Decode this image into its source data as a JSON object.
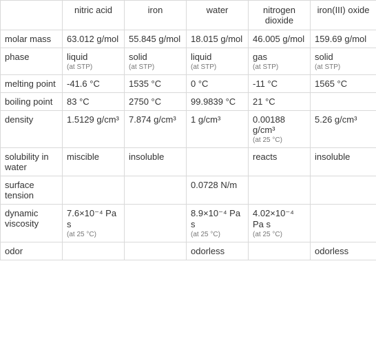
{
  "colors": {
    "border": "#d9d9d9",
    "text": "#333333",
    "sub": "#777777",
    "background": "#ffffff"
  },
  "font_sizes": {
    "main": 13,
    "sub": 10,
    "header": 13
  },
  "columns": [
    {
      "label": ""
    },
    {
      "label": "nitric acid"
    },
    {
      "label": "iron"
    },
    {
      "label": "water"
    },
    {
      "label": "nitrogen dioxide"
    },
    {
      "label": "iron(III) oxide"
    }
  ],
  "rows": [
    {
      "label": "molar mass",
      "cells": [
        {
          "value": "63.012 g/mol"
        },
        {
          "value": "55.845 g/mol"
        },
        {
          "value": "18.015 g/mol"
        },
        {
          "value": "46.005 g/mol"
        },
        {
          "value": "159.69 g/mol"
        }
      ]
    },
    {
      "label": "phase",
      "cells": [
        {
          "value": "liquid",
          "sub": "(at STP)"
        },
        {
          "value": "solid",
          "sub": "(at STP)"
        },
        {
          "value": "liquid",
          "sub": "(at STP)"
        },
        {
          "value": "gas",
          "sub": "(at STP)"
        },
        {
          "value": "solid",
          "sub": "(at STP)"
        }
      ]
    },
    {
      "label": "melting point",
      "cells": [
        {
          "value": "-41.6 °C"
        },
        {
          "value": "1535 °C"
        },
        {
          "value": "0 °C"
        },
        {
          "value": "-11 °C"
        },
        {
          "value": "1565 °C"
        }
      ]
    },
    {
      "label": "boiling point",
      "cells": [
        {
          "value": "83 °C"
        },
        {
          "value": "2750 °C"
        },
        {
          "value": "99.9839 °C"
        },
        {
          "value": "21 °C"
        },
        {
          "value": ""
        }
      ]
    },
    {
      "label": "density",
      "cells": [
        {
          "value": "1.5129 g/cm³"
        },
        {
          "value": "7.874 g/cm³"
        },
        {
          "value": "1 g/cm³"
        },
        {
          "value": "0.00188 g/cm³",
          "sub": "(at 25 °C)"
        },
        {
          "value": "5.26 g/cm³"
        }
      ]
    },
    {
      "label": "solubility in water",
      "cells": [
        {
          "value": "miscible"
        },
        {
          "value": "insoluble"
        },
        {
          "value": ""
        },
        {
          "value": "reacts"
        },
        {
          "value": "insoluble"
        }
      ]
    },
    {
      "label": "surface tension",
      "cells": [
        {
          "value": ""
        },
        {
          "value": ""
        },
        {
          "value": "0.0728 N/m"
        },
        {
          "value": ""
        },
        {
          "value": ""
        }
      ]
    },
    {
      "label": "dynamic viscosity",
      "cells": [
        {
          "value": "7.6×10⁻⁴ Pa s",
          "sub": "(at 25 °C)"
        },
        {
          "value": ""
        },
        {
          "value": "8.9×10⁻⁴ Pa s",
          "sub": "(at 25 °C)"
        },
        {
          "value": "4.02×10⁻⁴ Pa s",
          "sub": "(at 25 °C)"
        },
        {
          "value": ""
        }
      ]
    },
    {
      "label": "odor",
      "cells": [
        {
          "value": ""
        },
        {
          "value": ""
        },
        {
          "value": "odorless"
        },
        {
          "value": ""
        },
        {
          "value": "odorless"
        }
      ]
    }
  ]
}
